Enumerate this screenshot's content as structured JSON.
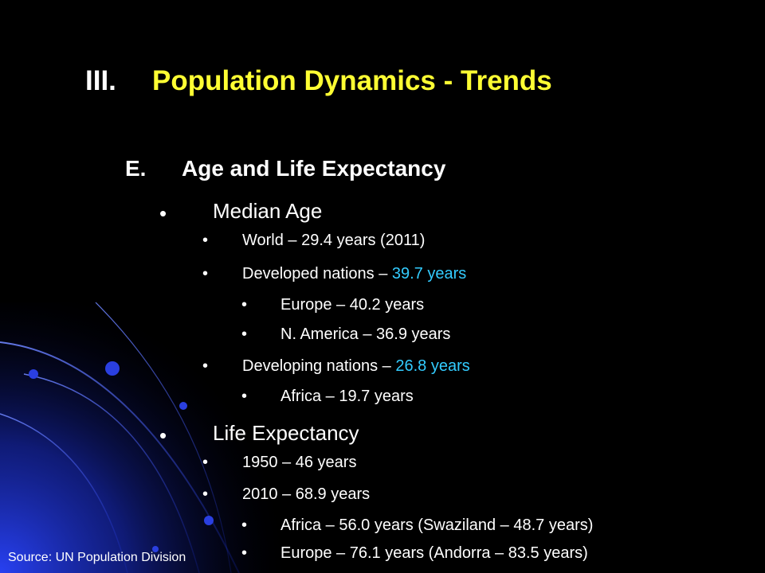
{
  "slide": {
    "title_number": "III.",
    "title_text": "Population Dynamics - Trends",
    "section_letter": "E.",
    "section_title": "Age and Life Expectancy",
    "bullet_glyph": "•",
    "median_age": {
      "label": "Median Age",
      "world": "World – 29.4 years (2011)",
      "developed_prefix": "Developed nations – ",
      "developed_value": "39.7 years",
      "europe": "Europe – 40.2 years",
      "n_america": "N. America – 36.9 years",
      "developing_prefix": "Developing nations – ",
      "developing_value": "26.8 years",
      "africa": "Africa – 19.7 years"
    },
    "life_expectancy": {
      "label": "Life Expectancy",
      "y1950": "1950 – 46 years",
      "y2010": "2010 – 68.9 years",
      "africa": "Africa – 56.0 years (Swaziland – 48.7 years)",
      "europe": "Europe – 76.1 years (Andorra – 83.5 years)"
    },
    "source": "Source: UN Population Division"
  },
  "colors": {
    "background": "#000000",
    "title": "#ffff33",
    "highlight": "#33ccff",
    "decoration": "#1a2fd6"
  }
}
